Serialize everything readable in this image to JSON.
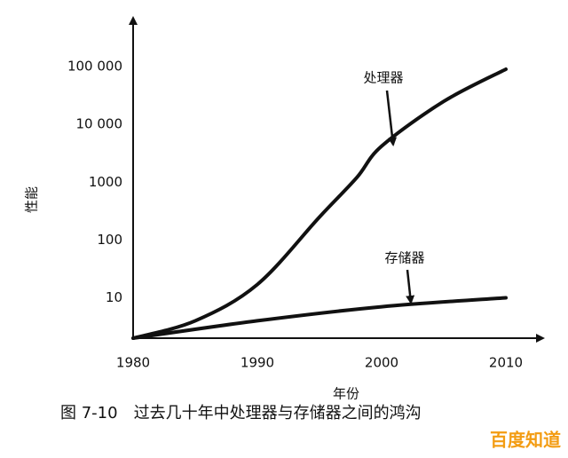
{
  "chart_data": {
    "type": "line",
    "title": "图 7-10　过去几十年中处理器与存储器之间的鸿沟",
    "x_label": "年份",
    "y_label": "性能",
    "y_log_scale": true,
    "xlim": [
      1980,
      2013
    ],
    "xticks": [
      1980,
      1990,
      2000,
      2010
    ],
    "ylim": [
      2,
      700000
    ],
    "yticks": [
      10,
      100,
      1000,
      {
        "value": 10000,
        "label": "10 000"
      },
      {
        "value": 100000,
        "label": "100 000"
      }
    ],
    "annotations": [
      "处理器",
      "存储器"
    ],
    "watermark": "百度知道",
    "series": [
      {
        "name": "处理器",
        "color": "#111111",
        "x": [
          1980,
          1985,
          1990,
          1995,
          1998,
          2000,
          2005,
          2010
        ],
        "values": [
          2,
          4,
          17,
          250,
          1200,
          4200,
          25000,
          90000
        ]
      },
      {
        "name": "存储器",
        "color": "#111111",
        "x": [
          1980,
          1990,
          2000,
          2010
        ],
        "values": [
          2,
          4,
          7,
          10
        ]
      }
    ]
  }
}
